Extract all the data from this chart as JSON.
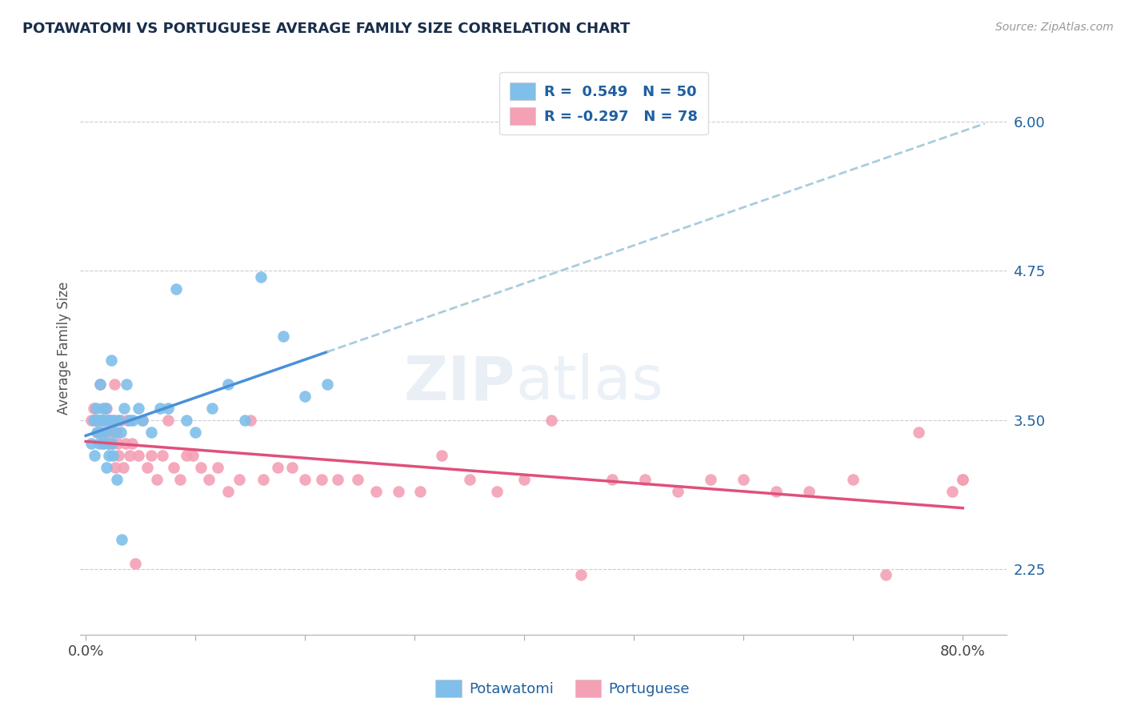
{
  "title": "POTAWATOMI VS PORTUGUESE AVERAGE FAMILY SIZE CORRELATION CHART",
  "source": "Source: ZipAtlas.com",
  "ylabel": "Average Family Size",
  "ytick_labels": [
    "2.25",
    "3.50",
    "4.75",
    "6.00"
  ],
  "ytick_vals": [
    2.25,
    3.5,
    4.75,
    6.0
  ],
  "ylim": [
    1.7,
    6.5
  ],
  "xlim": [
    -0.005,
    0.84
  ],
  "color_blue": "#7fbfea",
  "color_pink": "#f4a0b5",
  "color_blue_line": "#4a90d9",
  "color_pink_line": "#e0507a",
  "color_title": "#1a2e4a",
  "color_axis": "#2060a0",
  "watermark_zip": "ZIP",
  "watermark_atlas": "atlas",
  "potawatomi_x": [
    0.005,
    0.007,
    0.008,
    0.009,
    0.01,
    0.01,
    0.011,
    0.012,
    0.013,
    0.013,
    0.014,
    0.015,
    0.015,
    0.016,
    0.017,
    0.018,
    0.018,
    0.019,
    0.02,
    0.02,
    0.021,
    0.022,
    0.023,
    0.024,
    0.025,
    0.026,
    0.027,
    0.028,
    0.03,
    0.032,
    0.033,
    0.035,
    0.037,
    0.04,
    0.043,
    0.048,
    0.052,
    0.06,
    0.068,
    0.075,
    0.082,
    0.092,
    0.1,
    0.115,
    0.13,
    0.145,
    0.16,
    0.18,
    0.2,
    0.22
  ],
  "potawatomi_y": [
    3.3,
    3.5,
    3.2,
    3.6,
    3.5,
    3.4,
    3.5,
    3.3,
    3.8,
    3.5,
    3.4,
    3.5,
    3.6,
    3.3,
    3.5,
    3.4,
    3.6,
    3.1,
    3.5,
    3.3,
    3.2,
    3.5,
    4.0,
    3.3,
    3.2,
    3.5,
    3.4,
    3.0,
    3.5,
    3.4,
    2.5,
    3.6,
    3.8,
    3.5,
    3.5,
    3.6,
    3.5,
    3.4,
    3.6,
    3.6,
    4.6,
    3.5,
    3.4,
    3.6,
    3.8,
    3.5,
    4.7,
    4.2,
    3.7,
    3.8
  ],
  "portuguese_x": [
    0.005,
    0.007,
    0.008,
    0.009,
    0.01,
    0.011,
    0.012,
    0.013,
    0.014,
    0.015,
    0.016,
    0.017,
    0.018,
    0.019,
    0.02,
    0.021,
    0.022,
    0.023,
    0.024,
    0.025,
    0.026,
    0.027,
    0.028,
    0.029,
    0.03,
    0.032,
    0.034,
    0.036,
    0.038,
    0.04,
    0.042,
    0.045,
    0.048,
    0.052,
    0.056,
    0.06,
    0.065,
    0.07,
    0.075,
    0.08,
    0.086,
    0.092,
    0.098,
    0.105,
    0.112,
    0.12,
    0.13,
    0.14,
    0.15,
    0.162,
    0.175,
    0.188,
    0.2,
    0.215,
    0.23,
    0.248,
    0.265,
    0.285,
    0.305,
    0.325,
    0.35,
    0.375,
    0.4,
    0.425,
    0.452,
    0.48,
    0.51,
    0.54,
    0.57,
    0.6,
    0.63,
    0.66,
    0.7,
    0.73,
    0.76,
    0.79,
    0.8,
    0.8
  ],
  "portuguese_y": [
    3.5,
    3.6,
    3.5,
    3.5,
    3.5,
    3.4,
    3.5,
    3.8,
    3.4,
    3.5,
    3.3,
    3.5,
    3.4,
    3.6,
    3.5,
    3.3,
    3.5,
    3.4,
    3.3,
    3.5,
    3.8,
    3.1,
    3.4,
    3.3,
    3.2,
    3.5,
    3.1,
    3.3,
    3.5,
    3.2,
    3.3,
    2.3,
    3.2,
    3.5,
    3.1,
    3.2,
    3.0,
    3.2,
    3.5,
    3.1,
    3.0,
    3.2,
    3.2,
    3.1,
    3.0,
    3.1,
    2.9,
    3.0,
    3.5,
    3.0,
    3.1,
    3.1,
    3.0,
    3.0,
    3.0,
    3.0,
    2.9,
    2.9,
    2.9,
    3.2,
    3.0,
    2.9,
    3.0,
    3.5,
    2.2,
    3.0,
    3.0,
    2.9,
    3.0,
    3.0,
    2.9,
    2.9,
    3.0,
    2.2,
    3.4,
    2.9,
    3.0,
    3.0
  ]
}
